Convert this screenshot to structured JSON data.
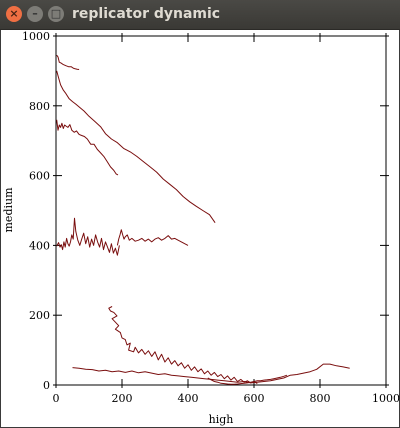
{
  "window": {
    "title": "replicator dynamic",
    "buttons": {
      "close_icon": "close-icon",
      "minimize_icon": "minimize-icon",
      "maximize_icon": "maximize-icon"
    }
  },
  "chart_data": {
    "type": "line",
    "title": "",
    "xlabel": "high",
    "ylabel": "medium",
    "xlim": [
      0,
      1000
    ],
    "ylim": [
      0,
      1000
    ],
    "xticks": [
      0,
      200,
      400,
      600,
      800,
      1000
    ],
    "yticks": [
      0,
      200,
      400,
      600,
      800,
      1000
    ],
    "grid": false,
    "line_color": "#7a0e0e",
    "series": [
      {
        "x": [
          2,
          6,
          10,
          16,
          22,
          30,
          38,
          46,
          52,
          58,
          64,
          70
        ],
        "y": [
          945,
          940,
          925,
          922,
          918,
          915,
          912,
          912,
          908,
          906,
          905,
          904
        ]
      },
      {
        "x": [
          2,
          8,
          14,
          22,
          30,
          40,
          50,
          60,
          72,
          85,
          100,
          118,
          135,
          150,
          168,
          185,
          205,
          225,
          245,
          265,
          285,
          305,
          325,
          345,
          365,
          385,
          405,
          425,
          445,
          465,
          482
        ],
        "y": [
          900,
          880,
          860,
          845,
          835,
          820,
          812,
          805,
          795,
          785,
          770,
          755,
          740,
          720,
          705,
          695,
          678,
          668,
          655,
          640,
          625,
          610,
          590,
          575,
          560,
          540,
          525,
          512,
          500,
          488,
          465
        ]
      },
      {
        "x": [
          2,
          6,
          10,
          14,
          18,
          22,
          26,
          30,
          36,
          42,
          48,
          55,
          62,
          70,
          78,
          86,
          95,
          105,
          115,
          125,
          135,
          145,
          155,
          165,
          175,
          182,
          188
        ],
        "y": [
          760,
          730,
          745,
          738,
          750,
          735,
          745,
          742,
          738,
          746,
          730,
          724,
          728,
          718,
          715,
          712,
          705,
          690,
          690,
          675,
          665,
          655,
          640,
          625,
          615,
          605,
          602
        ]
      },
      {
        "x": [
          2,
          8,
          12,
          16,
          20,
          24,
          28,
          32,
          36,
          40,
          44,
          48,
          52,
          56,
          60,
          66,
          72,
          78,
          84,
          90,
          96,
          102,
          108,
          114,
          120,
          126,
          132,
          138,
          144,
          150,
          156,
          162,
          168,
          174,
          180,
          186,
          192
        ],
        "y": [
          398,
          408,
          395,
          402,
          388,
          410,
          395,
          420,
          405,
          398,
          410,
          430,
          418,
          478,
          440,
          415,
          400,
          418,
          435,
          405,
          425,
          395,
          418,
          400,
          430,
          410,
          395,
          420,
          388,
          410,
          395,
          380,
          405,
          378,
          392,
          372,
          400
        ]
      },
      {
        "x": [
          186,
          190,
          194,
          198,
          202,
          206,
          210,
          216,
          222,
          230,
          240,
          250,
          260,
          270,
          280,
          290,
          300,
          310,
          320,
          330,
          340,
          350,
          360,
          370,
          380,
          390,
          400
        ],
        "y": [
          400,
          418,
          430,
          445,
          430,
          418,
          425,
          430,
          415,
          420,
          412,
          415,
          420,
          412,
          418,
          410,
          418,
          422,
          415,
          420,
          428,
          418,
          420,
          415,
          410,
          405,
          400
        ]
      },
      {
        "x": [
          170,
          160,
          165,
          175,
          185,
          170,
          180,
          190,
          180,
          195,
          200,
          210,
          215,
          225,
          220,
          235,
          240,
          250,
          260,
          270,
          280,
          290,
          300,
          310,
          320,
          330,
          340,
          350,
          360,
          370,
          380,
          390,
          400,
          410,
          420,
          430,
          440,
          450,
          460,
          470,
          480,
          490,
          500,
          510,
          520,
          530,
          540,
          550,
          560,
          570,
          580,
          590,
          600,
          610
        ],
        "y": [
          225,
          220,
          212,
          208,
          198,
          190,
          180,
          170,
          160,
          150,
          135,
          130,
          115,
          120,
          100,
          95,
          108,
          92,
          102,
          88,
          98,
          82,
          95,
          72,
          88,
          66,
          78,
          60,
          70,
          55,
          64,
          48,
          58,
          42,
          52,
          38,
          46,
          32,
          40,
          28,
          36,
          24,
          30,
          18,
          26,
          14,
          22,
          10,
          16,
          8,
          12,
          6,
          10,
          4
        ]
      },
      {
        "x": [
          50,
          70,
          90,
          110,
          130,
          150,
          170,
          190,
          210,
          230,
          250,
          270,
          290,
          310,
          330,
          350,
          370,
          390,
          410,
          430,
          450,
          470,
          490,
          510,
          530,
          550,
          570,
          590,
          610,
          630,
          650,
          670,
          690,
          710,
          730,
          750,
          770,
          790,
          810,
          830,
          850,
          870,
          890
        ],
        "y": [
          50,
          48,
          45,
          44,
          40,
          42,
          38,
          40,
          36,
          40,
          35,
          38,
          34,
          30,
          32,
          28,
          26,
          24,
          22,
          20,
          18,
          16,
          14,
          12,
          10,
          8,
          10,
          6,
          8,
          10,
          12,
          16,
          20,
          28,
          30,
          34,
          38,
          45,
          60,
          60,
          55,
          52,
          48
        ]
      },
      {
        "x": [
          460,
          470,
          480,
          490,
          500,
          510,
          520,
          530,
          540,
          550,
          560,
          570,
          580,
          590,
          600,
          610,
          620,
          630,
          640,
          650,
          660,
          670,
          680,
          690,
          700
        ],
        "y": [
          20,
          15,
          10,
          8,
          5,
          4,
          3,
          2,
          2,
          3,
          4,
          5,
          6,
          8,
          10,
          12,
          12,
          14,
          15,
          16,
          18,
          20,
          22,
          25,
          28
        ]
      }
    ]
  }
}
